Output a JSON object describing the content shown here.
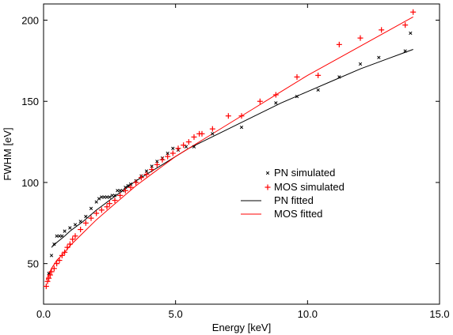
{
  "chart_data": {
    "type": "scatter",
    "title": "",
    "xlabel": "Energy [keV]",
    "ylabel": "FWHM [eV]",
    "xlim": [
      0.0,
      15.0
    ],
    "ylim": [
      25,
      210
    ],
    "xticks": [
      0.0,
      5.0,
      10.0,
      15.0
    ],
    "xtick_labels": [
      "0.0",
      "5.0",
      "10.0",
      "15.0"
    ],
    "yticks": [
      50,
      100,
      150,
      200
    ],
    "ytick_labels": [
      "50",
      "100",
      "150",
      "200"
    ],
    "grid": false,
    "legend_placement": "center-right",
    "series": [
      {
        "name": "PN simulated",
        "kind": "points",
        "marker": "x",
        "color": "#000000",
        "x": [
          0.2,
          0.3,
          0.4,
          0.5,
          0.6,
          0.7,
          0.8,
          1.0,
          1.2,
          1.4,
          1.6,
          1.8,
          2.0,
          2.1,
          2.2,
          2.3,
          2.4,
          2.5,
          2.6,
          2.7,
          2.8,
          2.9,
          3.0,
          3.1,
          3.2,
          3.3,
          3.5,
          3.7,
          3.9,
          4.1,
          4.3,
          4.5,
          4.7,
          4.9,
          5.1,
          5.4,
          5.7,
          6.4,
          7.5,
          8.8,
          9.6,
          10.4,
          11.2,
          12.0,
          12.7,
          13.7,
          13.9
        ],
        "y": [
          44,
          55,
          62,
          67,
          67,
          67,
          70,
          72,
          74,
          76,
          79,
          84,
          88,
          90,
          91,
          91,
          91,
          91,
          92,
          92,
          95,
          95,
          95,
          97,
          98,
          99,
          101,
          104,
          107,
          110,
          113,
          115,
          118,
          121,
          120,
          122,
          122,
          130,
          134,
          149,
          153,
          157,
          165,
          173,
          177,
          181,
          192
        ]
      },
      {
        "name": "MOS simulated",
        "kind": "points",
        "marker": "+",
        "color": "#ff0000",
        "x": [
          0.1,
          0.15,
          0.2,
          0.25,
          0.3,
          0.4,
          0.5,
          0.6,
          0.7,
          0.8,
          0.9,
          1.0,
          1.1,
          1.2,
          1.4,
          1.6,
          1.8,
          2.0,
          2.2,
          2.4,
          2.5,
          2.7,
          2.9,
          3.1,
          3.3,
          3.5,
          3.7,
          3.9,
          4.1,
          4.3,
          4.5,
          4.7,
          4.9,
          5.1,
          5.3,
          5.5,
          5.7,
          5.9,
          6.0,
          6.4,
          7.0,
          7.5,
          8.2,
          8.8,
          9.6,
          10.4,
          11.2,
          12.0,
          12.8,
          13.7,
          14.0
        ],
        "y": [
          36,
          39,
          41,
          43,
          45,
          47,
          50,
          52,
          55,
          57,
          60,
          62,
          65,
          67,
          71,
          75,
          78,
          81,
          83,
          85,
          87,
          89,
          92,
          95,
          97,
          100,
          103,
          105,
          108,
          111,
          114,
          116,
          118,
          121,
          123,
          125,
          128,
          130,
          130,
          133,
          141,
          141,
          150,
          154,
          165,
          166,
          185,
          189,
          194,
          197,
          205
        ]
      },
      {
        "name": "PN fitted",
        "kind": "line",
        "color": "#000000",
        "x": [
          0.3,
          0.5,
          0.8,
          1.0,
          1.5,
          2.0,
          2.5,
          3.0,
          3.5,
          4.0,
          4.5,
          5.0,
          5.5,
          6.0,
          7.0,
          8.0,
          9.0,
          10.0,
          11.0,
          12.0,
          13.0,
          14.0
        ],
        "y": [
          60,
          63,
          67,
          70,
          76,
          83,
          89,
          95,
          101,
          106,
          111,
          116,
          121,
          125,
          133,
          141,
          149,
          156,
          163,
          170,
          176,
          182
        ]
      },
      {
        "name": "MOS fitted",
        "kind": "line",
        "color": "#ff0000",
        "x": [
          0.1,
          0.3,
          0.5,
          0.8,
          1.0,
          1.5,
          2.0,
          2.5,
          3.0,
          3.5,
          4.0,
          4.5,
          5.0,
          5.5,
          6.0,
          7.0,
          8.0,
          9.0,
          10.0,
          11.0,
          12.0,
          13.0,
          14.0
        ],
        "y": [
          40,
          47,
          52,
          57,
          61,
          69,
          77,
          84,
          91,
          98,
          104,
          110,
          116,
          121,
          126,
          136,
          146,
          156,
          166,
          175,
          184,
          193,
          202
        ]
      }
    ]
  }
}
